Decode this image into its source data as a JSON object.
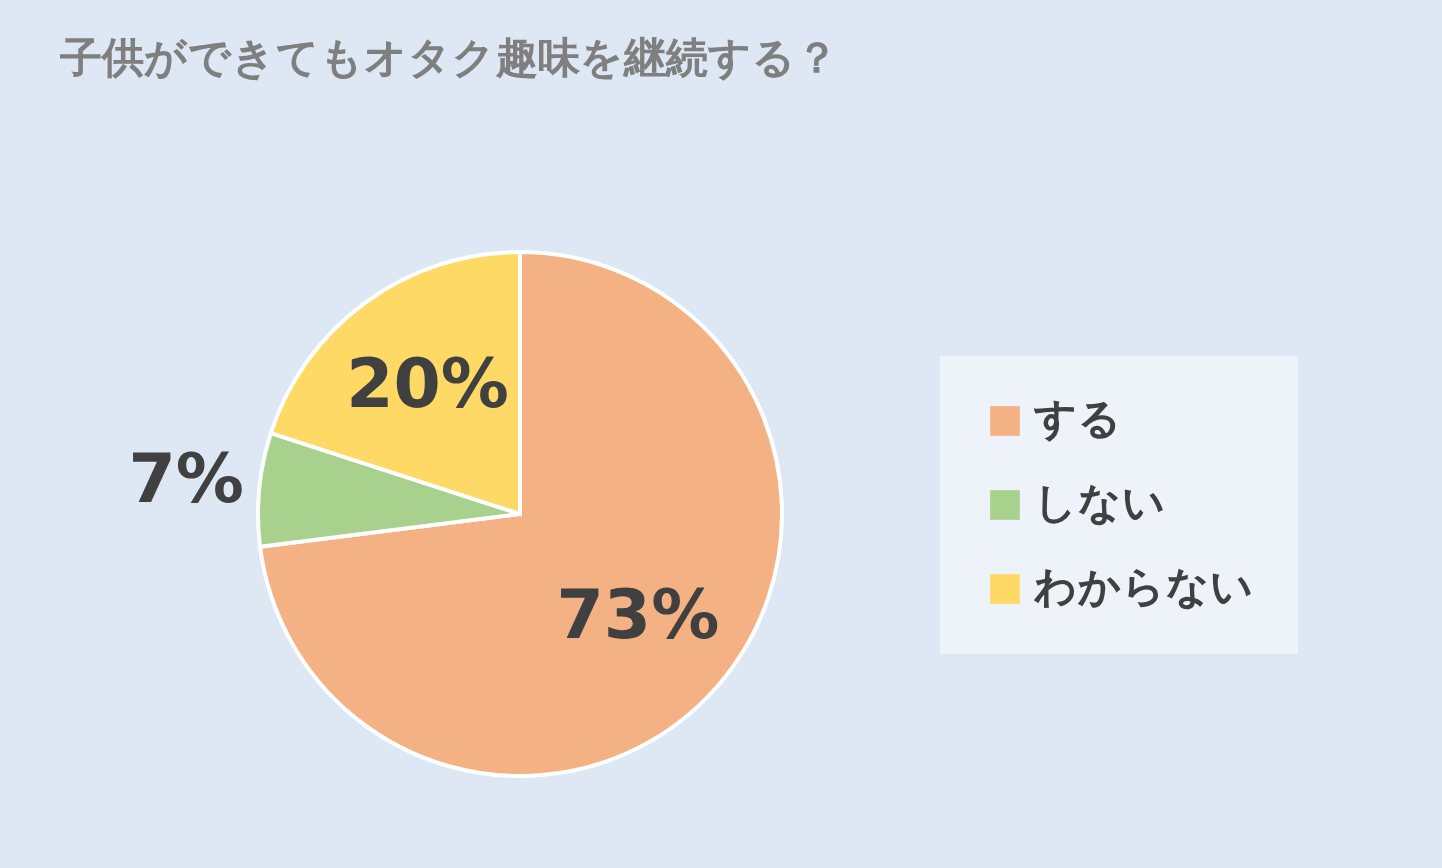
{
  "chart_data": {
    "type": "pie",
    "title": "子供ができてもオタク趣味を継続する？",
    "categories": [
      "する",
      "しない",
      "わからない"
    ],
    "values": [
      73,
      7,
      20
    ],
    "colors": [
      "#f4b183",
      "#a9d18e",
      "#ffd966"
    ],
    "value_labels": [
      "73%",
      "7%",
      "20%"
    ],
    "legend": "right"
  }
}
